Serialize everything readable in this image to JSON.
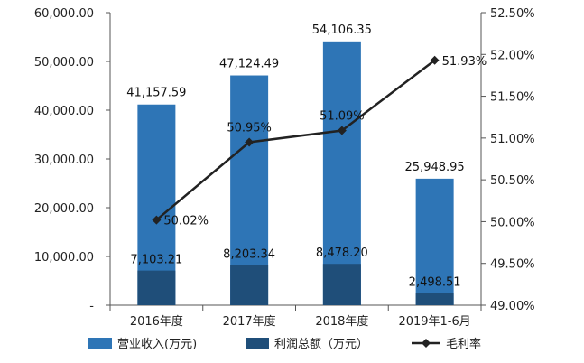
{
  "chart_data": {
    "type": "bar",
    "categories": [
      "2016年度",
      "2017年度",
      "2018年度",
      "2019年1-6月"
    ],
    "series": [
      {
        "name": "营业收入(万元)",
        "kind": "bar",
        "axis": "left",
        "color": "#2E75B6",
        "values": [
          41157.59,
          47124.49,
          54106.35,
          25948.95
        ],
        "labels": [
          "41,157.59",
          "47,124.49",
          "54,106.35",
          "25,948.95"
        ]
      },
      {
        "name": "利润总额（万元）",
        "kind": "bar",
        "axis": "left",
        "color": "#1F4E79",
        "values": [
          7103.21,
          8203.34,
          8478.2,
          2498.51
        ],
        "labels": [
          "7,103.21",
          "8,203.34",
          "8,478.20",
          "2,498.51"
        ]
      },
      {
        "name": "毛利率",
        "kind": "line",
        "axis": "right",
        "color": "#222222",
        "values": [
          50.02,
          50.95,
          51.09,
          51.93
        ],
        "labels": [
          "50.02%",
          "50.95%",
          "51.09%",
          "51.93%"
        ]
      }
    ],
    "left_axis": {
      "ylim": [
        0,
        60000
      ],
      "ticks": [
        0,
        10000,
        20000,
        30000,
        40000,
        50000,
        60000
      ],
      "tick_labels": [
        "-",
        "10,000.00",
        "20,000.00",
        "30,000.00",
        "40,000.00",
        "50,000.00",
        "60,000.00"
      ]
    },
    "right_axis": {
      "ylim": [
        49.0,
        52.5
      ],
      "ticks": [
        49.0,
        49.5,
        50.0,
        50.5,
        51.0,
        51.5,
        52.0,
        52.5
      ],
      "tick_labels": [
        "49.00%",
        "49.50%",
        "50.00%",
        "50.50%",
        "51.00%",
        "51.50%",
        "52.00%",
        "52.50%"
      ]
    },
    "grid": false,
    "legend": "bottom",
    "title": "",
    "xlabel": "",
    "ylabel": ""
  }
}
